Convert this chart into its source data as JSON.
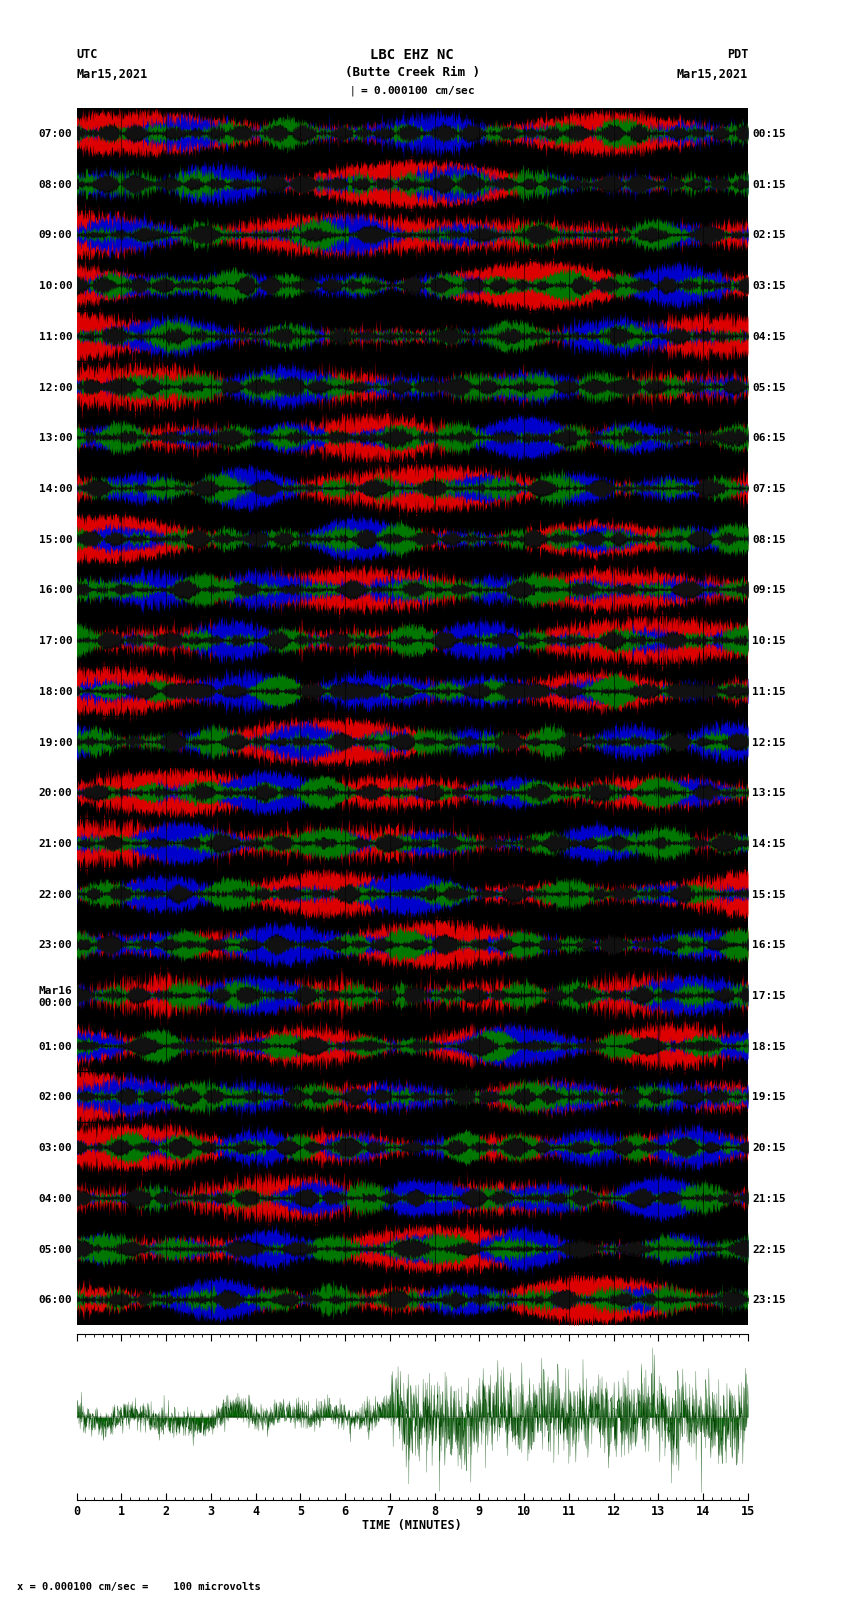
{
  "title_line1": "LBC EHZ NC",
  "title_line2": "(Butte Creek Rim )",
  "scale_label": "= 0.000100 cm/sec",
  "left_label": "UTC",
  "left_date": "Mar15,2021",
  "right_label": "PDT",
  "right_date": "Mar15,2021",
  "left_times": [
    "07:00",
    "08:00",
    "09:00",
    "10:00",
    "11:00",
    "12:00",
    "13:00",
    "14:00",
    "15:00",
    "16:00",
    "17:00",
    "18:00",
    "19:00",
    "20:00",
    "21:00",
    "22:00",
    "23:00",
    "Mar16\n00:00",
    "01:00",
    "02:00",
    "03:00",
    "04:00",
    "05:00",
    "06:00"
  ],
  "right_times": [
    "00:15",
    "01:15",
    "02:15",
    "03:15",
    "04:15",
    "05:15",
    "06:15",
    "07:15",
    "08:15",
    "09:15",
    "10:15",
    "11:15",
    "12:15",
    "13:15",
    "14:15",
    "15:15",
    "16:15",
    "17:15",
    "18:15",
    "19:15",
    "20:15",
    "21:15",
    "22:15",
    "23:15"
  ],
  "xlabel": "TIME (MINUTES)",
  "x_ticks": [
    0,
    1,
    2,
    3,
    4,
    5,
    6,
    7,
    8,
    9,
    10,
    11,
    12,
    13,
    14,
    15
  ],
  "scale_bottom": "x = 0.000100 cm/sec =    100 microvolts",
  "n_rows": 24,
  "background_color": "#ffffff",
  "fig_width": 8.5,
  "fig_height": 16.13
}
